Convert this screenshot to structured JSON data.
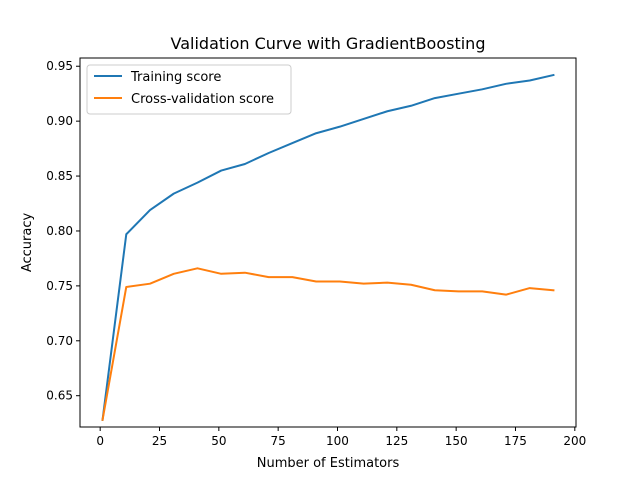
{
  "chart_data": {
    "type": "line",
    "title": "Validation Curve with GradientBoosting",
    "xlabel": "Number of Estimators",
    "ylabel": "Accuracy",
    "xlim": [
      -8.5,
      200.5
    ],
    "ylim": [
      0.6215,
      0.9575
    ],
    "xticks": [
      0,
      25,
      50,
      75,
      100,
      125,
      150,
      175,
      200
    ],
    "yticks": [
      0.65,
      0.7,
      0.75,
      0.8,
      0.85,
      0.9,
      0.95
    ],
    "x": [
      1,
      11,
      21,
      31,
      41,
      51,
      61,
      71,
      81,
      91,
      101,
      111,
      121,
      131,
      141,
      151,
      161,
      171,
      181,
      191
    ],
    "series": [
      {
        "name": "Training score",
        "color": "#1f77b4",
        "values": [
          0.628,
          0.797,
          0.819,
          0.834,
          0.844,
          0.855,
          0.861,
          0.871,
          0.88,
          0.889,
          0.895,
          0.902,
          0.909,
          0.914,
          0.921,
          0.925,
          0.929,
          0.934,
          0.937,
          0.942
        ]
      },
      {
        "name": "Cross-validation score",
        "color": "#ff7f0e",
        "values": [
          0.628,
          0.749,
          0.752,
          0.761,
          0.766,
          0.761,
          0.762,
          0.758,
          0.758,
          0.754,
          0.754,
          0.752,
          0.753,
          0.751,
          0.746,
          0.745,
          0.745,
          0.742,
          0.748,
          0.746
        ]
      }
    ],
    "grid": false,
    "legend": "top-left"
  }
}
